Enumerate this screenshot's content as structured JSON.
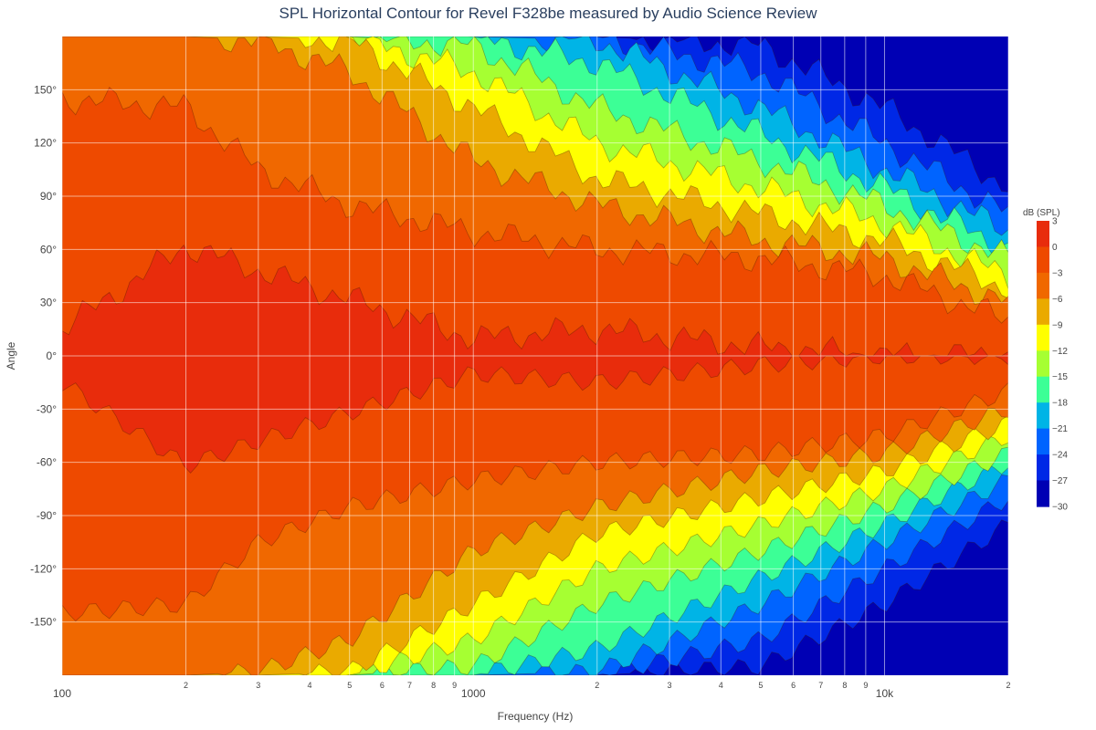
{
  "chart_data": {
    "type": "heatmap",
    "subtype": "filled-contour",
    "title": "SPL Horizontal Contour for Revel F328be measured by Audio Science Review",
    "xlabel": "Frequency (Hz)",
    "ylabel": "Angle",
    "x_scale": "log",
    "xlim": [
      100,
      20000
    ],
    "ylim": [
      -180,
      180
    ],
    "grid": true,
    "x_major_ticks": [
      {
        "value": 100,
        "label": "100"
      },
      {
        "value": 1000,
        "label": "1000"
      },
      {
        "value": 10000,
        "label": "10k"
      }
    ],
    "x_minor_ticks": [
      {
        "value": 200,
        "label": "2"
      },
      {
        "value": 300,
        "label": "3"
      },
      {
        "value": 400,
        "label": "4"
      },
      {
        "value": 500,
        "label": "5"
      },
      {
        "value": 600,
        "label": "6"
      },
      {
        "value": 700,
        "label": "7"
      },
      {
        "value": 800,
        "label": "8"
      },
      {
        "value": 900,
        "label": "9"
      },
      {
        "value": 2000,
        "label": "2"
      },
      {
        "value": 3000,
        "label": "3"
      },
      {
        "value": 4000,
        "label": "4"
      },
      {
        "value": 5000,
        "label": "5"
      },
      {
        "value": 6000,
        "label": "6"
      },
      {
        "value": 7000,
        "label": "7"
      },
      {
        "value": 8000,
        "label": "8"
      },
      {
        "value": 9000,
        "label": "9"
      },
      {
        "value": 20000,
        "label": "2"
      }
    ],
    "y_ticks": [
      {
        "value": 150,
        "label": "150°"
      },
      {
        "value": 120,
        "label": "120°"
      },
      {
        "value": 90,
        "label": "90°"
      },
      {
        "value": 60,
        "label": "60°"
      },
      {
        "value": 30,
        "label": "30°"
      },
      {
        "value": 0,
        "label": "0°"
      },
      {
        "value": -30,
        "label": "-30°"
      },
      {
        "value": -60,
        "label": "-60°"
      },
      {
        "value": -90,
        "label": "-90°"
      },
      {
        "value": -120,
        "label": "-120°"
      },
      {
        "value": -150,
        "label": "-150°"
      }
    ],
    "contour_levels": [
      3,
      0,
      -3,
      -6,
      -9,
      -12,
      -15,
      -18,
      -21,
      -24,
      -27,
      -30
    ],
    "boundary_angles_by_level": [
      {
        "level": 0,
        "frequencies": [
          100,
          200,
          300,
          500,
          1000,
          2000,
          5000,
          10000,
          20000
        ],
        "angles": [
          15,
          62,
          48,
          32,
          10,
          15,
          5,
          0,
          0
        ]
      },
      {
        "level": -3,
        "frequencies": [
          100,
          200,
          300,
          500,
          1000,
          2000,
          5000,
          10000,
          20000
        ],
        "angles": [
          145,
          140,
          105,
          85,
          70,
          60,
          55,
          45,
          20
        ]
      },
      {
        "level": -6,
        "frequencies": [
          100,
          200,
          300,
          500,
          1000,
          2000,
          5000,
          10000,
          20000
        ],
        "angles": [
          180,
          180,
          178,
          160,
          110,
          85,
          65,
          55,
          30
        ]
      },
      {
        "level": -9,
        "frequencies": [
          100,
          200,
          300,
          500,
          1000,
          2000,
          5000,
          10000,
          20000
        ],
        "angles": [
          180,
          180,
          180,
          178,
          140,
          100,
          80,
          65,
          38
        ]
      },
      {
        "level": -12,
        "frequencies": [
          100,
          200,
          300,
          500,
          1000,
          2000,
          5000,
          10000,
          20000
        ],
        "angles": [
          180,
          180,
          180,
          180,
          160,
          120,
          95,
          75,
          45
        ]
      },
      {
        "level": -15,
        "frequencies": [
          100,
          200,
          300,
          500,
          1000,
          2000,
          5000,
          10000,
          20000
        ],
        "angles": [
          180,
          180,
          180,
          180,
          175,
          140,
          110,
          85,
          55
        ]
      },
      {
        "level": -18,
        "frequencies": [
          100,
          200,
          300,
          500,
          1000,
          2000,
          5000,
          10000,
          20000
        ],
        "angles": [
          180,
          180,
          180,
          180,
          180,
          165,
          125,
          95,
          60
        ]
      },
      {
        "level": -21,
        "frequencies": [
          100,
          200,
          300,
          500,
          1000,
          2000,
          5000,
          10000,
          20000
        ],
        "angles": [
          180,
          180,
          180,
          180,
          180,
          178,
          140,
          105,
          70
        ]
      },
      {
        "level": -24,
        "frequencies": [
          100,
          200,
          300,
          500,
          1000,
          2000,
          5000,
          10000,
          20000
        ],
        "angles": [
          180,
          180,
          180,
          180,
          180,
          180,
          160,
          120,
          80
        ]
      },
      {
        "level": -27,
        "frequencies": [
          100,
          200,
          300,
          500,
          1000,
          2000,
          5000,
          10000,
          20000
        ],
        "angles": [
          180,
          180,
          180,
          180,
          180,
          180,
          175,
          140,
          95
        ]
      }
    ],
    "colorbar": {
      "title": "dB (SPL)",
      "min": -30,
      "max": 3,
      "labels": [
        "3",
        "0",
        "−3",
        "−6",
        "−9",
        "−12",
        "−15",
        "−18",
        "−21",
        "−24",
        "−27",
        "−30"
      ],
      "colors": [
        "#e82c0c",
        "#ee4a00",
        "#f06800",
        "#eaaa00",
        "#ffff00",
        "#a6ff32",
        "#3cff96",
        "#00b4e6",
        "#0064ff",
        "#0028e6",
        "#0000b4"
      ]
    }
  }
}
